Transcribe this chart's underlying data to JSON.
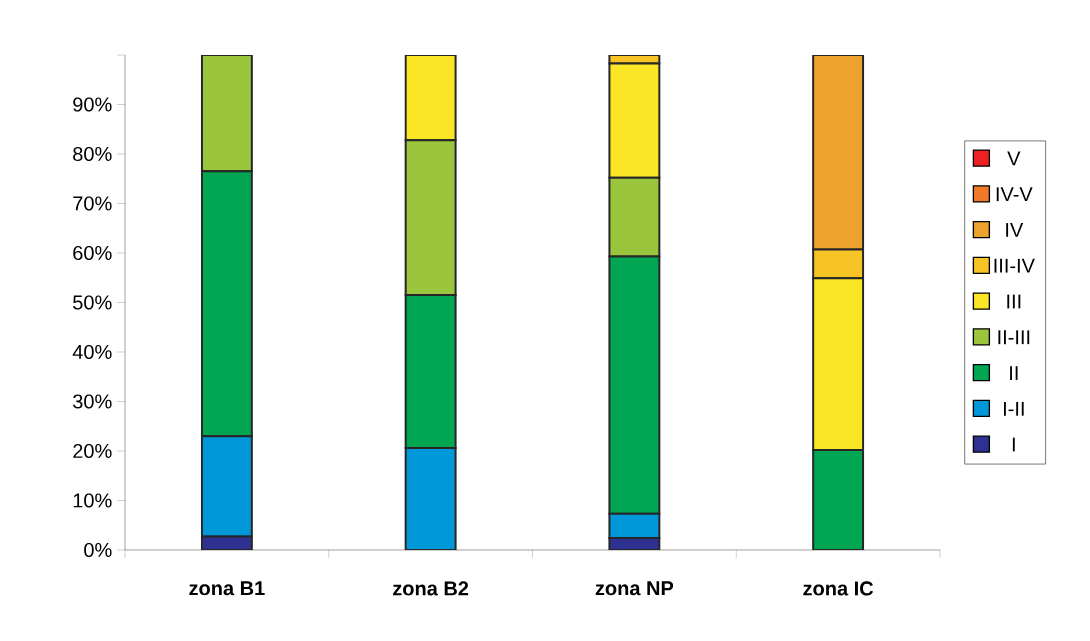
{
  "chart_data": {
    "type": "bar",
    "stacked": true,
    "categories": [
      "zona B1",
      "zona B2",
      "zona NP",
      "zona IC"
    ],
    "series": [
      {
        "name": "I",
        "color": "#2e3192",
        "values": [
          2.7,
          0,
          2.4,
          0
        ]
      },
      {
        "name": "I-II",
        "color": "#0098d8",
        "values": [
          20.3,
          20.6,
          4.9,
          0
        ]
      },
      {
        "name": "II",
        "color": "#00a651",
        "values": [
          53.5,
          30.9,
          52.0,
          20.2
        ]
      },
      {
        "name": "II-III",
        "color": "#9bc53d",
        "values": [
          23.5,
          31.3,
          15.9,
          0
        ]
      },
      {
        "name": "III",
        "color": "#fbe625",
        "values": [
          0,
          17.2,
          23.1,
          34.7
        ]
      },
      {
        "name": "III-IV",
        "color": "#f7c325",
        "values": [
          0,
          0,
          1.7,
          5.8
        ]
      },
      {
        "name": "IV",
        "color": "#eea22e",
        "values": [
          0,
          0,
          0,
          39.3
        ]
      },
      {
        "name": "IV-V",
        "color": "#f07a2a",
        "values": [
          0,
          0,
          0,
          0
        ]
      },
      {
        "name": "V",
        "color": "#ed2024",
        "values": [
          0,
          0,
          0,
          0
        ]
      }
    ],
    "ylim": [
      0,
      100
    ],
    "yticks": [
      {
        "value": 0,
        "label": "0%"
      },
      {
        "value": 10,
        "label": "10%"
      },
      {
        "value": 20,
        "label": "20%"
      },
      {
        "value": 30,
        "label": "30%"
      },
      {
        "value": 40,
        "label": "40%"
      },
      {
        "value": 50,
        "label": "50%"
      },
      {
        "value": 60,
        "label": "60%"
      },
      {
        "value": 70,
        "label": "70%"
      },
      {
        "value": 80,
        "label": "80%"
      },
      {
        "value": 90,
        "label": "90%"
      },
      {
        "value": 100,
        "label": null
      }
    ],
    "grid": false,
    "legend": "right"
  }
}
